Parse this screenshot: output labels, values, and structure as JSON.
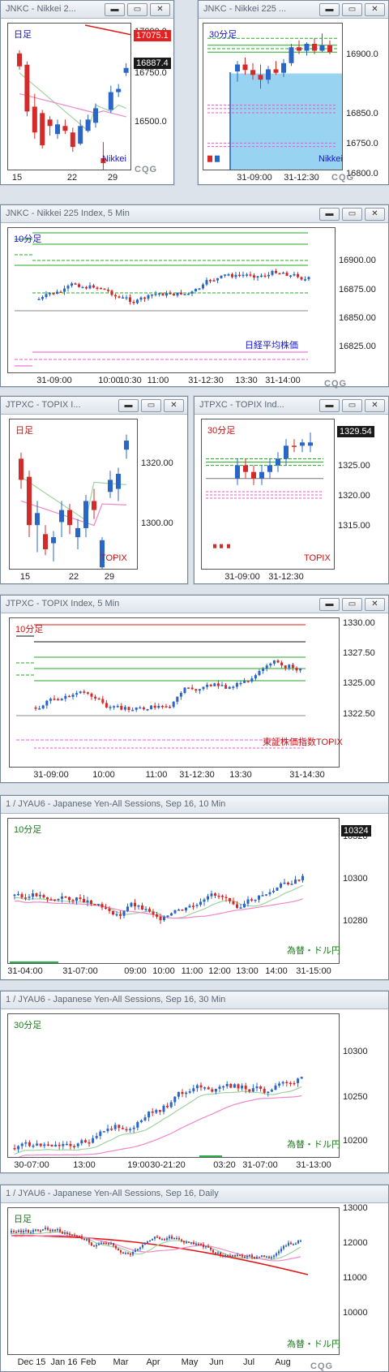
{
  "windows": [
    {
      "title": "JNKC - Nikkei 2...",
      "buttons": [
        "▬",
        "▭",
        "✕"
      ],
      "period": "日足",
      "period_color": "blue",
      "watermark": "Nikkei",
      "watermark_color": "blue",
      "logo": "CQG",
      "y_ticks": [
        "17000.0",
        "16750.0",
        "16500.0"
      ],
      "x_ticks": [
        "15",
        "22",
        "29"
      ],
      "price_badges": [
        "17075.1",
        "16887.4"
      ],
      "candles": [
        [
          16970,
          16990,
          16870,
          16890
        ],
        [
          16900,
          16920,
          16580,
          16610
        ],
        [
          16640,
          16720,
          16440,
          16480
        ],
        [
          16600,
          16620,
          16380,
          16400
        ],
        [
          16560,
          16580,
          16460,
          16520
        ],
        [
          16470,
          16560,
          16440,
          16530
        ],
        [
          16520,
          16560,
          16470,
          16490
        ],
        [
          16480,
          16510,
          16360,
          16390
        ],
        [
          16410,
          16560,
          16400,
          16520
        ],
        [
          16490,
          16590,
          16480,
          16560
        ],
        [
          16540,
          16660,
          16510,
          16630
        ],
        [
          16320,
          16420,
          16250,
          16290
        ],
        [
          16620,
          16770,
          16600,
          16730
        ],
        [
          16730,
          16780,
          16700,
          16750
        ],
        [
          16850,
          16910,
          16830,
          16880
        ]
      ]
    },
    {
      "title": "JNKC - Nikkei 225 ...",
      "buttons": [
        "▬",
        "▭",
        "✕"
      ],
      "period": "30分足",
      "period_color": "blue",
      "watermark": "Nikkei",
      "watermark_color": "blue",
      "logo": "CQG",
      "y_ticks": [
        "16900.0",
        "16850.0",
        "16800.0",
        "16750.0"
      ],
      "x_ticks": [
        "31-09:00",
        "31-12:30"
      ],
      "candles": [
        [
          16860,
          16875,
          16845,
          16870
        ],
        [
          16870,
          16880,
          16855,
          16862
        ],
        [
          16862,
          16872,
          16848,
          16855
        ],
        [
          16855,
          16870,
          16835,
          16848
        ],
        [
          16848,
          16868,
          16842,
          16863
        ],
        [
          16863,
          16875,
          16855,
          16858
        ],
        [
          16858,
          16878,
          16852,
          16872
        ],
        [
          16872,
          16900,
          16868,
          16895
        ],
        [
          16895,
          16905,
          16885,
          16890
        ],
        [
          16890,
          16902,
          16883,
          16900
        ],
        [
          16900,
          16908,
          16885,
          16890
        ],
        [
          16890,
          16915,
          16888,
          16898
        ],
        [
          16898,
          16905,
          16885,
          16888
        ]
      ]
    },
    {
      "title": "JNKC - Nikkei 225 Index, 5 Min",
      "buttons": [
        "▬",
        "▭",
        "✕"
      ],
      "period": "10分足",
      "period_color": "blue",
      "watermark": "日経平均株価",
      "watermark_color": "blue",
      "logo": "CQG",
      "y_ticks": [
        "16900.00",
        "16875.00",
        "16850.00",
        "16825.00"
      ],
      "x_ticks": [
        "31-09:00",
        "10:00",
        "10:30",
        "11:00",
        "31-12:30",
        "13:30",
        "31-14:00"
      ]
    },
    {
      "title": "JTPXC - TOPIX I...",
      "buttons": [
        "▬",
        "▭",
        "✕"
      ],
      "period": "日足",
      "period_color": "red",
      "watermark": "TOPIX",
      "watermark_color": "red",
      "y_ticks": [
        "1320.00",
        "1300.00"
      ],
      "x_ticks": [
        "15",
        "22",
        "29"
      ]
    },
    {
      "title": "JTPXC - TOPIX Ind...",
      "buttons": [
        "▬",
        "▭",
        "✕"
      ],
      "period": "30分足",
      "period_color": "red",
      "watermark": "TOPIX",
      "watermark_color": "red",
      "y_ticks": [
        "1325.00",
        "1320.00",
        "1315.00"
      ],
      "x_ticks": [
        "31-09:00",
        "31-12:30"
      ],
      "price_badges": [
        "1329.54"
      ]
    },
    {
      "title": "JTPXC - TOPIX Index, 5 Min",
      "buttons": [
        "▬",
        "▭",
        "✕"
      ],
      "period": "10分足",
      "period_color": "red",
      "watermark": "東証株価指数TOPIX",
      "watermark_color": "red",
      "y_ticks": [
        "1330.00",
        "1327.50",
        "1325.00",
        "1322.50"
      ],
      "x_ticks": [
        "31-09:00",
        "10:00",
        "11:00",
        "31-12:30",
        "13:30",
        "31-14:30"
      ]
    },
    {
      "title": "1 / JYAU6 - Japanese Yen-All Sessions, Sep 16, 10 Min",
      "buttons": [
        "▬",
        "▭",
        "✕"
      ],
      "period": "10分足",
      "period_color": "green",
      "watermark": "為替・ドル円",
      "watermark_color": "green",
      "y_ticks": [
        "10320",
        "10300",
        "10280"
      ],
      "x_ticks": [
        "31-04:00",
        "31-07:00",
        "09:00",
        "10:00",
        "11:00",
        "12:00",
        "13:00",
        "14:00",
        "31-15:00"
      ],
      "price_badges": [
        "10324"
      ]
    },
    {
      "title": "1 / JYAU6 - Japanese Yen-All Sessions, Sep 16, 30 Min",
      "buttons": [
        "▬",
        "▭",
        "✕"
      ],
      "period": "30分足",
      "period_color": "green",
      "watermark": "為替・ドル円",
      "watermark_color": "green",
      "y_ticks": [
        "10300",
        "10250",
        "10200"
      ],
      "x_ticks": [
        "30-07:00",
        "13:00",
        "19:00",
        "30-21:20",
        "03:20",
        "31-07:00",
        "31-13:00"
      ]
    },
    {
      "title": "1 / JYAU6 - Japanese Yen-All Sessions, Sep 16, Daily",
      "buttons": [
        "▬",
        "▭",
        "✕"
      ],
      "period": "日足",
      "period_color": "green",
      "watermark": "為替・ドル円",
      "watermark_color": "green",
      "logo": "CQG",
      "y_ticks": [
        "13000",
        "12000",
        "11000",
        "10000"
      ],
      "x_ticks": [
        "Dec 15",
        "Jan 16",
        "Feb",
        "Mar",
        "Apr",
        "May",
        "Jun",
        "Jul",
        "Aug"
      ]
    }
  ],
  "colors": {
    "up": "#2a66c8",
    "down": "#d42a2a",
    "ma_green": "#9fd39f",
    "ma_pink": "#ee88c8",
    "line_red": "#e01818",
    "level_green": "#22aa22",
    "level_pink": "#ee55cc",
    "shade": "#7ec8ee"
  }
}
